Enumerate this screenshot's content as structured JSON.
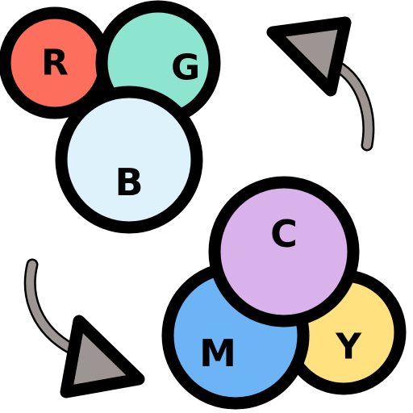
{
  "rgb_group": {
    "circles": [
      {
        "name": "red-circle",
        "letter": "R",
        "fill": "#FE6E5C",
        "shade": "#F0544A"
      },
      {
        "name": "green-circle",
        "letter": "G",
        "fill": "#8DE4CF",
        "shade": "#6ED3BC"
      },
      {
        "name": "blue-circle",
        "letter": "B",
        "fill": "#DDF2FA",
        "shade": "#C4E6F3"
      }
    ]
  },
  "cmy_group": {
    "circles": [
      {
        "name": "cyan-circle",
        "letter": "C",
        "fill": "#D9B1EB",
        "shade": "#C99AE0"
      },
      {
        "name": "magenta-circle",
        "letter": "M",
        "fill": "#6DB4F6",
        "shade": "#5AA1EC"
      },
      {
        "name": "yellow-circle",
        "letter": "Y",
        "fill": "#FFE27F",
        "shade": "#F9D063"
      }
    ]
  },
  "arrows": {
    "fill": "#9C9594",
    "stroke": "#000000"
  }
}
